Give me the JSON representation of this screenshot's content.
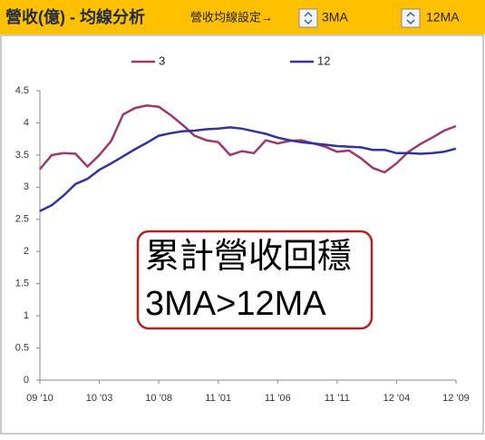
{
  "header": {
    "title": "營收(億) - 均線分析",
    "setting_label": "營收均線設定→",
    "controls": [
      "3MA",
      "12MA"
    ]
  },
  "chart_data": {
    "type": "line",
    "categories": [
      "09 '10",
      null,
      null,
      null,
      null,
      "10 '03",
      null,
      null,
      null,
      null,
      "10 '08",
      null,
      null,
      null,
      null,
      "11 '01",
      null,
      null,
      null,
      null,
      "11 '06",
      null,
      null,
      null,
      null,
      "11 '11",
      null,
      null,
      null,
      null,
      "12 '04",
      null,
      null,
      null,
      null,
      "12 '09"
    ],
    "series": [
      {
        "name": "3",
        "color": "#9b3a6b",
        "values": [
          3.28,
          3.5,
          3.53,
          3.52,
          3.32,
          3.5,
          3.72,
          4.13,
          4.23,
          4.27,
          4.25,
          4.12,
          3.97,
          3.8,
          3.73,
          3.7,
          3.5,
          3.56,
          3.53,
          3.73,
          3.68,
          3.72,
          3.73,
          3.68,
          3.63,
          3.55,
          3.57,
          3.45,
          3.3,
          3.23,
          3.37,
          3.55,
          3.67,
          3.77,
          3.88,
          3.95
        ]
      },
      {
        "name": "12",
        "color": "#333399",
        "values": [
          2.63,
          2.72,
          2.87,
          3.05,
          3.13,
          3.27,
          3.37,
          3.48,
          3.59,
          3.69,
          3.8,
          3.84,
          3.87,
          3.88,
          3.9,
          3.91,
          3.93,
          3.91,
          3.87,
          3.83,
          3.77,
          3.73,
          3.7,
          3.68,
          3.66,
          3.64,
          3.63,
          3.62,
          3.58,
          3.58,
          3.53,
          3.53,
          3.52,
          3.53,
          3.55,
          3.6
        ]
      }
    ],
    "ylim": [
      0,
      4.5
    ],
    "yticks": [
      0,
      0.5,
      1,
      1.5,
      2,
      2.5,
      3,
      3.5,
      4,
      4.5
    ],
    "annotation": [
      "累計營收回穩",
      "3MA>12MA"
    ]
  }
}
